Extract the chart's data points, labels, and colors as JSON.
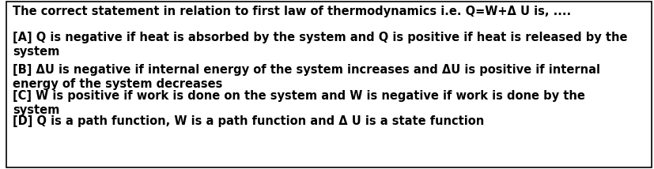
{
  "bg_color": "#ffffff",
  "border_color": "#000000",
  "title_line": "The correct statement in relation to first law of thermodynamics i.e. Q=W+Δ U is, ....",
  "options": [
    "[A] Q is negative if heat is absorbed by the system and Q is positive if heat is released by the\nsystem",
    "[B] ΔU is negative if internal energy of the system increases and ΔU is positive if internal\nenergy of the system decreases",
    "[C] W is positive if work is done on the system and W is negative if work is done by the\nsystem",
    "[D] Q is a path function, W is a path function and Δ U is a state function"
  ],
  "font_size": 10.5,
  "title_font_size": 10.5,
  "text_color": "#000000",
  "fig_width": 8.28,
  "fig_height": 2.14,
  "dpi": 100
}
